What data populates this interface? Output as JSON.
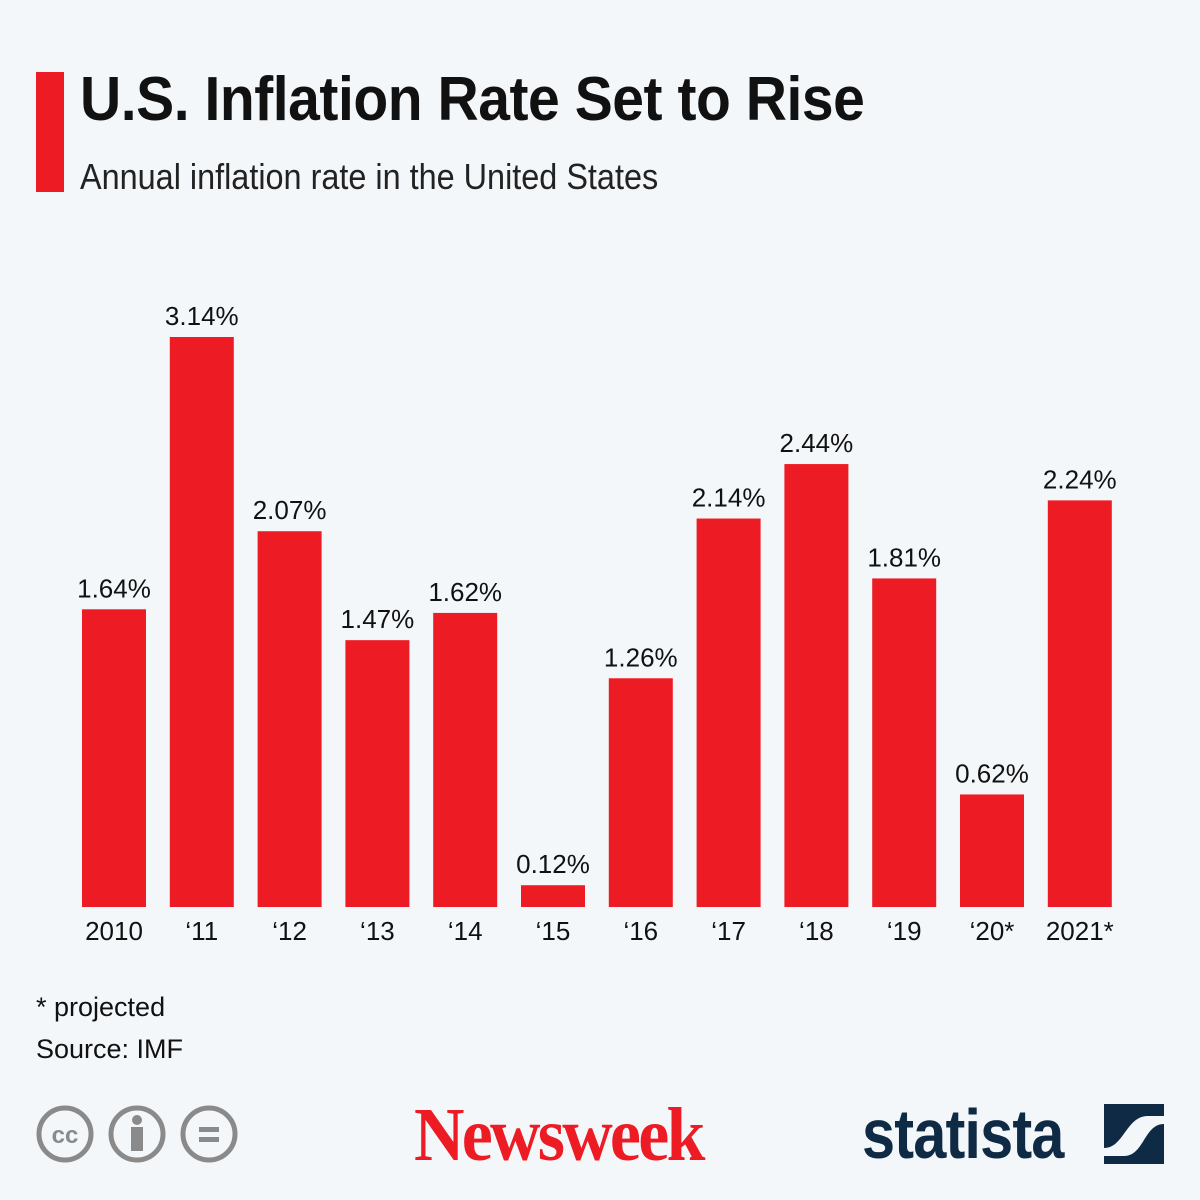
{
  "header": {
    "title": "U.S. Inflation Rate Set to Rise",
    "subtitle": "Annual inflation rate in the United States"
  },
  "chart_data": {
    "type": "bar",
    "categories": [
      "2010",
      "‘11",
      "‘12",
      "‘13",
      "‘14",
      "‘15",
      "‘16",
      "‘17",
      "‘18",
      "‘19",
      "‘20*",
      "2021*"
    ],
    "values": [
      1.64,
      3.14,
      2.07,
      1.47,
      1.62,
      0.12,
      1.26,
      2.14,
      2.44,
      1.81,
      0.62,
      2.24
    ],
    "labels": [
      "1.64%",
      "3.14%",
      "2.07%",
      "1.47%",
      "1.62%",
      "0.12%",
      "1.26%",
      "2.14%",
      "2.44%",
      "1.81%",
      "0.62%",
      "2.24%"
    ],
    "title": "U.S. Inflation Rate Set to Rise",
    "subtitle": "Annual inflation rate in the United States",
    "ylim": [
      0,
      3.14
    ],
    "grid": false,
    "bar_color": "#ed1c24"
  },
  "footer": {
    "note": "* projected",
    "source": "Source: IMF",
    "brand1": "Newsweek",
    "brand2": "statista",
    "license_icons": [
      "cc-icon",
      "attribution-icon",
      "no-derivatives-icon"
    ]
  },
  "colors": {
    "accent": "#ed1c24",
    "statista": "#0f2a44",
    "icons": "#8a8a8a"
  }
}
